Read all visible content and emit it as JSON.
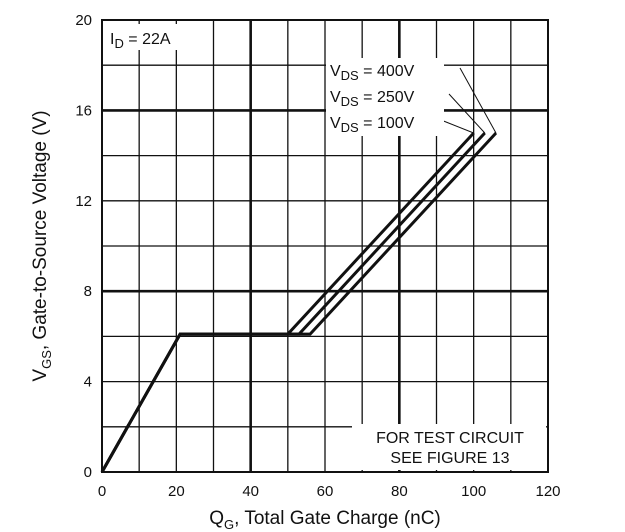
{
  "chart_data": {
    "type": "line",
    "xlabel": {
      "main": "Q",
      "sub": "G",
      "rest": ", Total Gate Charge (nC)"
    },
    "ylabel": {
      "main": "V",
      "sub": "GS",
      "rest": ", Gate-to-Source Voltage (V)"
    },
    "xlim": [
      0,
      120
    ],
    "ylim": [
      0,
      20
    ],
    "x_ticks": [
      0,
      20,
      40,
      60,
      80,
      100,
      120
    ],
    "y_ticks": [
      0,
      4,
      8,
      12,
      16,
      20
    ],
    "major_grid_x": [
      40,
      80
    ],
    "major_grid_y": [
      8,
      16
    ],
    "grid": true,
    "condition": {
      "main": "I",
      "sub": "D",
      "rest": " = 22A"
    },
    "series": [
      {
        "name": {
          "main": "V",
          "sub": "DS",
          "rest": " = 400V"
        },
        "x": [
          0,
          21,
          56,
          106
        ],
        "y": [
          0,
          6.1,
          6.1,
          15
        ]
      },
      {
        "name": {
          "main": "V",
          "sub": "DS",
          "rest": " = 250V"
        },
        "x": [
          0,
          21,
          53,
          103
        ],
        "y": [
          0,
          6.1,
          6.1,
          15
        ]
      },
      {
        "name": {
          "main": "V",
          "sub": "DS",
          "rest": " = 100V"
        },
        "x": [
          0,
          21,
          50,
          100
        ],
        "y": [
          0,
          6.1,
          6.1,
          15
        ]
      }
    ],
    "annotation": [
      "FOR TEST CIRCUIT",
      "SEE FIGURE 13"
    ],
    "line_color": "#111111",
    "grid_color": "#111111"
  }
}
